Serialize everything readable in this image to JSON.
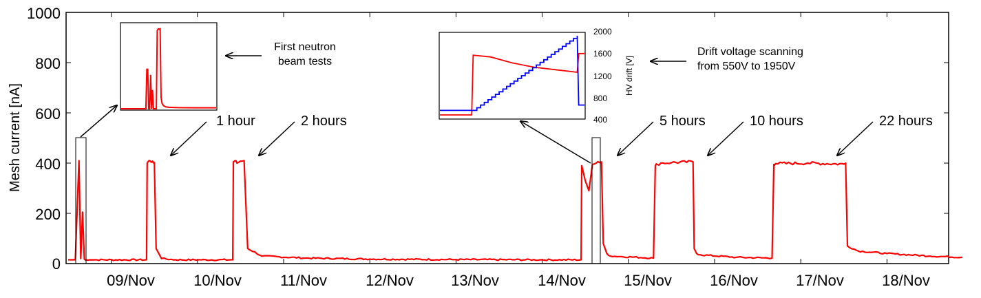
{
  "chart_data": [
    {
      "type": "line",
      "xlabel": "",
      "ylabel": "Mesh current [nA]",
      "ylim": [
        0,
        1000
      ],
      "xlim": [
        "08/Nov 12:00",
        "18/Nov 21:00"
      ],
      "y_ticks": [
        "0",
        "200",
        "400",
        "600",
        "800",
        "1000"
      ],
      "x_ticks": [
        "09/Nov",
        "10/Nov",
        "11/Nov",
        "12/Nov",
        "13/Nov",
        "14/Nov",
        "15/Nov",
        "16/Nov",
        "17/Nov",
        "18/Nov"
      ],
      "grid": false,
      "series": [
        {
          "color": "#ff0000",
          "x": [
            "08/Nov 12:00",
            "08/Nov 14:00",
            "08/Nov 15:00",
            "08/Nov 15:30",
            "08/Nov 16:00",
            "08/Nov 16:30",
            "08/Nov 17:00",
            "08/Nov 18:00",
            "08/Nov 20:00",
            "09/Nov 09:50",
            "09/Nov 10:00",
            "09/Nov 10:30",
            "09/Nov 11:00",
            "09/Nov 11:30",
            "09/Nov 12:00",
            "09/Nov 12:30",
            "09/Nov 14:00",
            "09/Nov 18:00",
            "10/Nov 09:50",
            "10/Nov 10:00",
            "10/Nov 10:30",
            "10/Nov 11:00",
            "10/Nov 12:00",
            "10/Nov 13:00",
            "10/Nov 14:00",
            "10/Nov 18:00",
            "11/Nov 06:00",
            "12/Nov 00:00",
            "13/Nov 00:00",
            "14/Nov 00:00",
            "14/Nov 10:50",
            "14/Nov 11:00",
            "14/Nov 12:00",
            "14/Nov 13:00",
            "14/Nov 14:00",
            "14/Nov 15:00",
            "14/Nov 16:00",
            "14/Nov 16:30",
            "14/Nov 17:00",
            "14/Nov 18:00",
            "14/Nov 19:00",
            "15/Nov 07:00",
            "15/Nov 07:30",
            "15/Nov 08:00",
            "15/Nov 09:00",
            "15/Nov 12:00",
            "15/Nov 18:00",
            "15/Nov 18:20",
            "15/Nov 19:00",
            "15/Nov 20:00",
            "16/Nov 06:00",
            "16/Nov 16:00",
            "16/Nov 16:30",
            "16/Nov 17:00",
            "17/Nov 02:00",
            "17/Nov 12:00",
            "17/Nov 12:30",
            "17/Nov 13:00",
            "17/Nov 16:00",
            "18/Nov 00:00",
            "18/Nov 12:00",
            "18/Nov 21:00"
          ],
          "y": [
            15,
            15,
            410,
            20,
            205,
            18,
            15,
            15,
            15,
            15,
            400,
            410,
            405,
            408,
            402,
            60,
            20,
            15,
            15,
            405,
            410,
            400,
            408,
            410,
            60,
            30,
            22,
            18,
            16,
            15,
            15,
            390,
            330,
            290,
            395,
            400,
            402,
            405,
            80,
            40,
            30,
            22,
            390,
            395,
            400,
            402,
            405,
            60,
            40,
            35,
            25,
            22,
            395,
            398,
            400,
            396,
            400,
            70,
            50,
            40,
            30,
            25
          ]
        }
      ],
      "annotations": [
        "1 hour",
        "2 hours",
        "5 hours",
        "10 hours",
        "22 hours"
      ]
    },
    {
      "type": "line",
      "ylabel": "",
      "xlabel": "",
      "y_ticks": [],
      "series": [
        {
          "color": "#ff0000",
          "x": [
            0.0,
            0.26,
            0.27,
            0.28,
            0.29,
            0.3,
            0.31,
            0.32,
            0.33,
            0.34,
            0.35,
            0.37,
            0.38,
            0.39,
            0.4,
            0.41,
            0.42,
            0.43,
            0.44,
            0.45,
            0.46,
            0.47,
            0.5,
            0.6,
            0.8,
            1.0
          ],
          "y": [
            0,
            0,
            420,
            420,
            0,
            0,
            360,
            0,
            200,
            0,
            0,
            0,
            830,
            850,
            845,
            850,
            120,
            60,
            40,
            30,
            25,
            20,
            15,
            12,
            10,
            10
          ]
        }
      ],
      "annotations": [
        "First neutron beam tests"
      ]
    },
    {
      "type": "line",
      "y2label": "HV drift [V]",
      "y2_ticks": [
        "400",
        "800",
        "1200",
        "1600",
        "2000"
      ],
      "y2lim": [
        400,
        2000
      ],
      "series": [
        {
          "name": "",
          "color": "#ff0000",
          "x": [
            0.0,
            0.22,
            0.23,
            0.35,
            0.5,
            0.65,
            0.8,
            0.95,
            0.96,
            1.0
          ],
          "y": [
            0.04,
            0.04,
            0.74,
            0.72,
            0.65,
            0.6,
            0.57,
            0.54,
            0.76,
            0.76
          ]
        },
        {
          "name": "",
          "color": "#0000ff",
          "steps": 28,
          "x_start": 0.23,
          "x_end": 0.95,
          "y_start_volts": 550,
          "y_end_volts": 1950,
          "x_before": [
            0.0,
            0.23
          ],
          "y_before_volts": [
            550,
            550
          ],
          "x_after": [
            0.96,
            1.0
          ],
          "y_after_volts": [
            650,
            650
          ]
        }
      ],
      "annotations": [
        "Drift voltage scanning",
        "from 550V to 1950V"
      ]
    }
  ]
}
